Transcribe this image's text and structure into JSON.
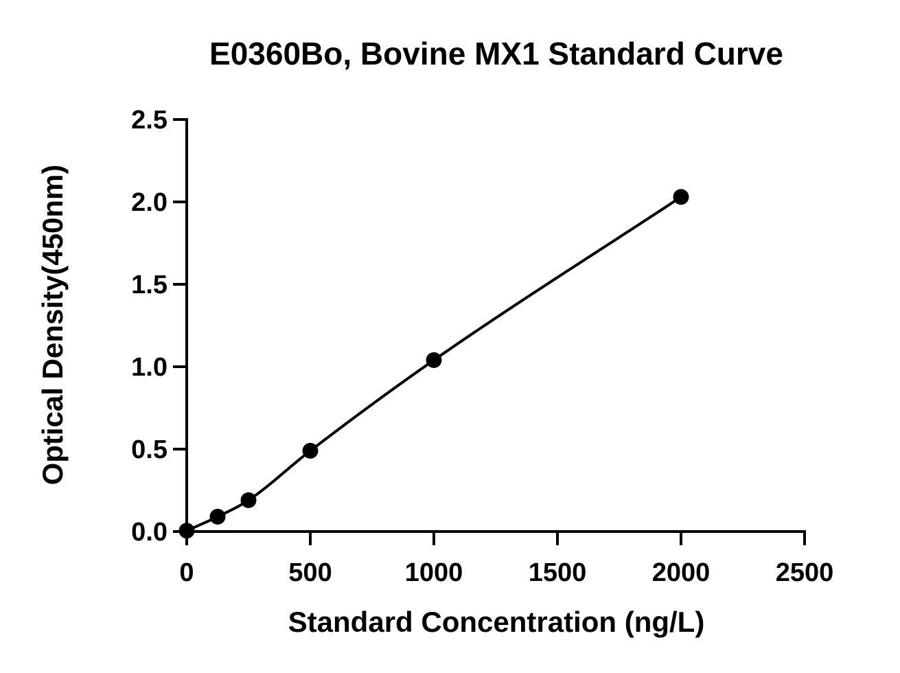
{
  "chart_data": {
    "type": "scatter",
    "title": "E0360Bo, Bovine MX1 Standard Curve",
    "xlabel": "Standard Concentration (ng/L)",
    "ylabel": "Optical Density(450nm)",
    "xlim": [
      0,
      2500
    ],
    "ylim": [
      0,
      2.5
    ],
    "x_ticks": [
      "0",
      "500",
      "1000",
      "1500",
      "2000",
      "2500"
    ],
    "y_ticks": [
      "0.0",
      "0.5",
      "1.0",
      "1.5",
      "2.0",
      "2.5"
    ],
    "grid": false,
    "legend": "none",
    "series": [
      {
        "x": [
          0,
          125,
          250,
          500,
          1000,
          2000
        ],
        "y": [
          0.005,
          0.09,
          0.19,
          0.49,
          1.04,
          2.03
        ],
        "marker": "filled-circle",
        "fit_line": true,
        "color": "#000000"
      }
    ]
  }
}
